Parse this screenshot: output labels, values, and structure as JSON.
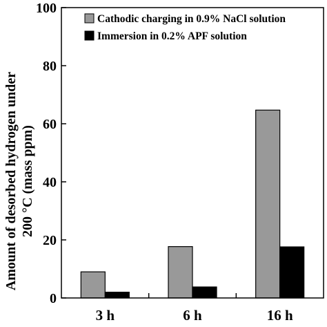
{
  "chart_data": {
    "type": "bar",
    "categories": [
      "3 h",
      "6 h",
      "16 h"
    ],
    "series": [
      {
        "name": "Cathodic charging in 0.9% NaCl solution",
        "values": [
          9,
          17.7,
          64.7
        ],
        "color": "#999999"
      },
      {
        "name": "Immersion in 0.2% APF solution",
        "values": [
          2,
          3.8,
          17.6
        ],
        "color": "#000000"
      }
    ],
    "ylabel_line1": "Amount  of desorbed hydrogen under",
    "ylabel_line2": "200 °C   (mass ppm)",
    "ylim": [
      0,
      100
    ],
    "yticks": [
      "0",
      "20",
      "40",
      "60",
      "80",
      "100"
    ],
    "grid": false,
    "legend_position": "top-right"
  }
}
